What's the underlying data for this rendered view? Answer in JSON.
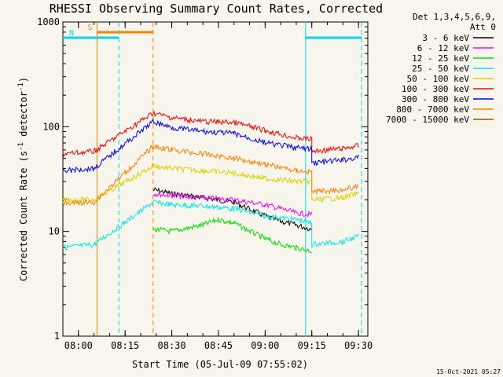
{
  "chart_data": {
    "type": "line",
    "title": "RHESSI Observing Summary Count Rates, Corrected",
    "xlabel": "Start Time (05-Jul-09 07:55:02)",
    "ylabel_main": "Corrected Count Rate (s",
    "ylabel_sup1": "-1",
    "ylabel_mid": " detector",
    "ylabel_sup2": "-1",
    "ylabel_end": ")",
    "yscale": "log",
    "ylim": [
      1,
      1000
    ],
    "xlim": [
      "07:55",
      "09:33"
    ],
    "x_ticks": [
      "08:00",
      "08:15",
      "08:30",
      "08:45",
      "09:00",
      "09:15",
      "09:30"
    ],
    "y_ticks": [
      "1",
      "10",
      "100",
      "1000"
    ],
    "legend_header": [
      "Det 1,3,4,5,6,9,",
      "Att 0"
    ],
    "legend_position": "right",
    "footer_date": "15-Oct-2021 05:27",
    "flags": [
      {
        "label": "S",
        "color": "#ff7f00",
        "start": "08:06",
        "end": "08:24"
      },
      {
        "label": "N",
        "color": "#00d8e8",
        "start": "07:55",
        "end": "08:13"
      },
      {
        "label": "",
        "color": "#00d8e8",
        "start": "09:13",
        "end": "09:31"
      }
    ],
    "vlines": [
      {
        "t": "08:06",
        "color": "#ff7f00",
        "style": "solid"
      },
      {
        "t": "08:24",
        "color": "#ff7f00",
        "style": "dashed"
      },
      {
        "t": "08:13",
        "color": "#00d8e8",
        "style": "dashed"
      },
      {
        "t": "09:13",
        "color": "#00d8e8",
        "style": "solid"
      },
      {
        "t": "09:31",
        "color": "#00d8e8",
        "style": "dashed"
      }
    ],
    "series": [
      {
        "name": "3 - 6 keV",
        "color": "#000000",
        "points": [
          [
            "08:24",
            25
          ],
          [
            "08:30",
            23
          ],
          [
            "08:40",
            21
          ],
          [
            "08:50",
            19
          ],
          [
            "09:00",
            14
          ],
          [
            "09:05",
            12.5
          ],
          [
            "09:10",
            11.5
          ],
          [
            "09:15",
            10.5
          ]
        ]
      },
      {
        "name": "6 - 12 keV",
        "color": "#ff00ff",
        "points": [
          [
            "08:24",
            23
          ],
          [
            "08:30",
            22
          ],
          [
            "08:40",
            21
          ],
          [
            "08:50",
            20
          ],
          [
            "09:00",
            18
          ],
          [
            "09:05",
            16.5
          ],
          [
            "09:10",
            15
          ],
          [
            "09:15",
            14.5
          ]
        ]
      },
      {
        "name": "12 - 25 keV",
        "color": "#00e000",
        "points": [
          [
            "08:24",
            10.5
          ],
          [
            "08:30",
            10
          ],
          [
            "08:40",
            11.5
          ],
          [
            "08:45",
            13
          ],
          [
            "08:50",
            12
          ],
          [
            "09:00",
            8.5
          ],
          [
            "09:05",
            7.5
          ],
          [
            "09:10",
            7
          ],
          [
            "09:15",
            6.5
          ]
        ]
      },
      {
        "name": "25 - 50 keV",
        "color": "#00e8e8",
        "points": [
          [
            "07:55",
            7
          ],
          [
            "08:05",
            7.5
          ],
          [
            "08:24",
            19
          ],
          [
            "08:30",
            18
          ],
          [
            "08:40",
            17.5
          ],
          [
            "08:50",
            16.5
          ],
          [
            "09:00",
            14
          ],
          [
            "09:10",
            13
          ],
          [
            "09:15",
            12
          ],
          [
            "09:15",
            7.5
          ],
          [
            "09:25",
            8
          ],
          [
            "09:30",
            9
          ]
        ]
      },
      {
        "name": "50 - 100 keV",
        "color": "#d8d000",
        "points": [
          [
            "07:55",
            20
          ],
          [
            "08:05",
            20
          ],
          [
            "08:24",
            42
          ],
          [
            "08:30",
            40
          ],
          [
            "08:40",
            38
          ],
          [
            "08:50",
            36
          ],
          [
            "09:00",
            32
          ],
          [
            "09:10",
            30
          ],
          [
            "09:15",
            30
          ],
          [
            "09:15",
            20
          ],
          [
            "09:25",
            21
          ],
          [
            "09:30",
            23
          ]
        ]
      },
      {
        "name": "100 - 300 keV",
        "color": "#ff0000",
        "points": [
          [
            "07:55",
            55
          ],
          [
            "08:05",
            58
          ],
          [
            "08:24",
            135
          ],
          [
            "08:30",
            122
          ],
          [
            "08:40",
            112
          ],
          [
            "08:50",
            110
          ],
          [
            "09:00",
            92
          ],
          [
            "09:10",
            78
          ],
          [
            "09:15",
            76
          ],
          [
            "09:15",
            58
          ],
          [
            "09:25",
            62
          ],
          [
            "09:30",
            66
          ]
        ]
      },
      {
        "name": "300 - 800 keV",
        "color": "#0000ff",
        "points": [
          [
            "07:55",
            38
          ],
          [
            "08:05",
            40
          ],
          [
            "08:24",
            112
          ],
          [
            "08:30",
            98
          ],
          [
            "08:40",
            90
          ],
          [
            "08:50",
            86
          ],
          [
            "09:00",
            70
          ],
          [
            "09:10",
            63
          ],
          [
            "09:15",
            61
          ],
          [
            "09:15",
            45
          ],
          [
            "09:25",
            48
          ],
          [
            "09:30",
            51
          ]
        ]
      },
      {
        "name": "800 - 7000 keV",
        "color": "#ff7f00",
        "points": [
          [
            "07:55",
            18.5
          ],
          [
            "08:05",
            19
          ],
          [
            "08:24",
            65
          ],
          [
            "08:30",
            60
          ],
          [
            "08:40",
            55
          ],
          [
            "08:50",
            50
          ],
          [
            "09:00",
            44
          ],
          [
            "09:10",
            38
          ],
          [
            "09:15",
            37
          ],
          [
            "09:15",
            24
          ],
          [
            "09:25",
            25
          ],
          [
            "09:30",
            27
          ]
        ]
      },
      {
        "name": "7000 - 15000 keV",
        "color": "#7f6000",
        "points": []
      }
    ]
  }
}
